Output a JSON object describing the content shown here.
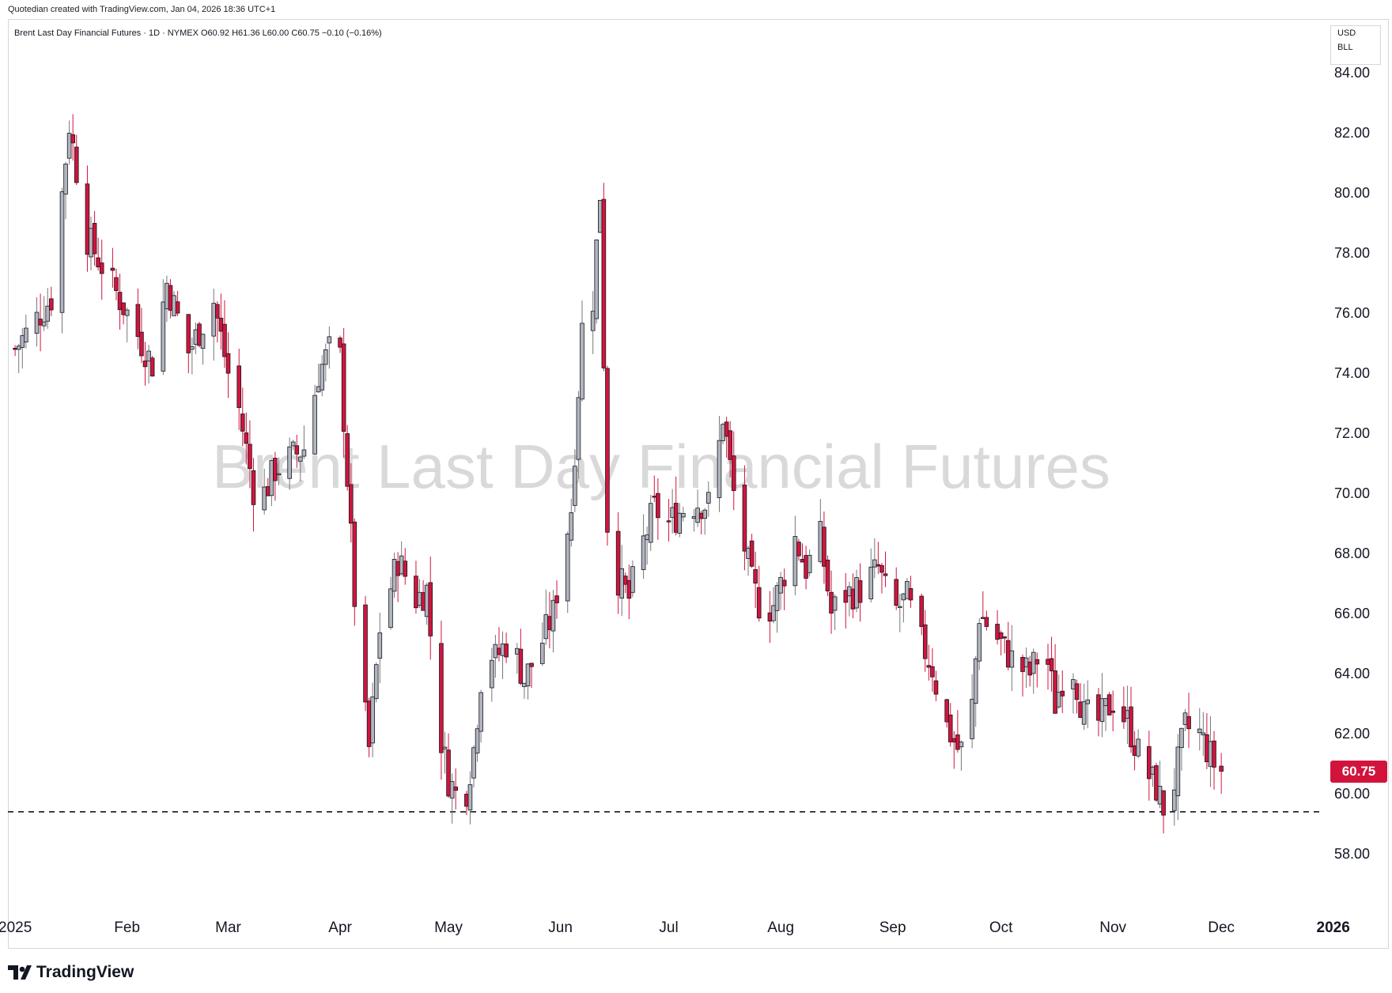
{
  "header": {
    "credit": "Quotedian created with TradingView.com, Jan 04, 2026 18:36 UTC+1",
    "symbol_line": "Brent Last Day Financial Futures · 1D · NYMEX  O60.92  H61.36  L60.00  C60.75  −0.10 (−0.16%)"
  },
  "badges": {
    "currency": "USD",
    "symbol": "BLL"
  },
  "watermark": "Brent Last Day Financial Futures",
  "last_price_label": "60.75",
  "footer": {
    "logo_text": "TradingView"
  },
  "colors": {
    "up": "#b2b5be",
    "down": "#d2143c",
    "outline": "#131722",
    "last_price": "#d2143c"
  },
  "chart_data": {
    "type": "candlestick",
    "title": "Brent Last Day Financial Futures",
    "interval": "1D",
    "exchange": "NYMEX",
    "ohlc_last": {
      "open": 60.92,
      "high": 61.36,
      "low": 60.0,
      "close": 60.75,
      "change": -0.1,
      "change_pct": -0.16
    },
    "y_range": [
      56.0,
      85.0
    ],
    "y_ticks": [
      "58.00",
      "60.00",
      "62.00",
      "64.00",
      "66.00",
      "68.00",
      "70.00",
      "72.00",
      "74.00",
      "76.00",
      "78.00",
      "80.00",
      "82.00",
      "84.00"
    ],
    "x_range": [
      -2,
      362
    ],
    "x_ticks": [
      {
        "label": "2025",
        "day": 0
      },
      {
        "label": "Feb",
        "day": 31
      },
      {
        "label": "Mar",
        "day": 59
      },
      {
        "label": "Apr",
        "day": 90
      },
      {
        "label": "May",
        "day": 120
      },
      {
        "label": "Jun",
        "day": 151
      },
      {
        "label": "Jul",
        "day": 181
      },
      {
        "label": "Aug",
        "day": 212
      },
      {
        "label": "Sep",
        "day": 243
      },
      {
        "label": "Oct",
        "day": 273
      },
      {
        "label": "Nov",
        "day": 304
      },
      {
        "label": "Dec",
        "day": 334
      },
      {
        "label": "2026",
        "day": 365
      }
    ],
    "support_level": 59.4,
    "last_price": 60.75,
    "series": [
      {
        "start": 0,
        "end": 31,
        "points": [
          [
            0,
            74.8
          ],
          [
            10,
            76.5
          ],
          [
            15,
            82.3
          ],
          [
            20,
            78.5
          ],
          [
            31,
            76.0
          ]
        ]
      },
      {
        "start": 31,
        "end": 59,
        "points": [
          [
            31,
            76.0
          ],
          [
            38,
            74.3
          ],
          [
            42,
            77.0
          ],
          [
            48,
            74.7
          ],
          [
            55,
            76.4
          ],
          [
            59,
            74.0
          ]
        ]
      },
      {
        "start": 59,
        "end": 90,
        "points": [
          [
            59,
            74.0
          ],
          [
            62,
            72.8
          ],
          [
            67,
            69.5
          ],
          [
            72,
            70.8
          ],
          [
            80,
            71.5
          ],
          [
            84,
            74.0
          ],
          [
            88,
            75.0
          ],
          [
            90,
            74.5
          ]
        ]
      },
      {
        "start": 90,
        "end": 120,
        "points": [
          [
            90,
            74.5
          ],
          [
            93,
            68.5
          ],
          [
            95,
            64.5
          ],
          [
            98,
            61.5
          ],
          [
            101,
            65.5
          ],
          [
            106,
            67.8
          ],
          [
            111,
            66.5
          ],
          [
            114,
            66.8
          ],
          [
            117,
            62.4
          ],
          [
            120,
            60.5
          ]
        ]
      },
      {
        "start": 120,
        "end": 151,
        "points": [
          [
            120,
            60.5
          ],
          [
            124,
            59.5
          ],
          [
            127,
            61.5
          ],
          [
            130,
            65.0
          ],
          [
            133,
            64.5
          ],
          [
            137,
            65.2
          ],
          [
            141,
            63.8
          ],
          [
            145,
            64.8
          ],
          [
            149,
            66.0
          ],
          [
            151,
            67.5
          ]
        ]
      },
      {
        "start": 151,
        "end": 181,
        "points": [
          [
            151,
            67.5
          ],
          [
            154,
            69.5
          ],
          [
            157,
            75.5
          ],
          [
            160,
            76.5
          ],
          [
            162,
            80.0
          ],
          [
            164,
            69.0
          ],
          [
            166,
            67.4
          ],
          [
            170,
            66.5
          ],
          [
            173,
            68.0
          ],
          [
            177,
            69.5
          ],
          [
            181,
            69.0
          ]
        ]
      },
      {
        "start": 181,
        "end": 212,
        "points": [
          [
            181,
            69.0
          ],
          [
            185,
            69.5
          ],
          [
            189,
            69.7
          ],
          [
            193,
            69.6
          ],
          [
            196,
            72.6
          ],
          [
            199,
            70.0
          ],
          [
            204,
            67.0
          ],
          [
            207,
            66.0
          ],
          [
            210,
            66.3
          ],
          [
            212,
            67.0
          ]
        ]
      },
      {
        "start": 212,
        "end": 243,
        "points": [
          [
            212,
            67.0
          ],
          [
            216,
            68.5
          ],
          [
            219,
            67.5
          ],
          [
            223,
            68.5
          ],
          [
            226,
            66.0
          ],
          [
            229,
            66.6
          ],
          [
            234,
            66.8
          ],
          [
            239,
            67.5
          ],
          [
            243,
            66.0
          ]
        ]
      },
      {
        "start": 243,
        "end": 273,
        "points": [
          [
            243,
            66.0
          ],
          [
            247,
            66.5
          ],
          [
            250,
            65.3
          ],
          [
            254,
            64.2
          ],
          [
            257,
            62.5
          ],
          [
            261,
            61.5
          ],
          [
            264,
            61.4
          ],
          [
            267,
            66.0
          ],
          [
            273,
            65.0
          ]
        ]
      },
      {
        "start": 273,
        "end": 304,
        "points": [
          [
            273,
            65.0
          ],
          [
            277,
            64.3
          ],
          [
            281,
            64.0
          ],
          [
            285,
            65.0
          ],
          [
            288,
            63.0
          ],
          [
            292,
            64.7
          ],
          [
            296,
            62.6
          ],
          [
            300,
            62.4
          ],
          [
            304,
            63.1
          ]
        ]
      },
      {
        "start": 304,
        "end": 334,
        "points": [
          [
            304,
            63.1
          ],
          [
            308,
            62.4
          ],
          [
            312,
            61.0
          ],
          [
            316,
            60.2
          ],
          [
            319,
            59.2
          ],
          [
            321,
            60.4
          ],
          [
            324,
            62.2
          ],
          [
            328,
            62.0
          ],
          [
            332,
            61.0
          ],
          [
            334,
            60.75
          ]
        ]
      }
    ]
  }
}
